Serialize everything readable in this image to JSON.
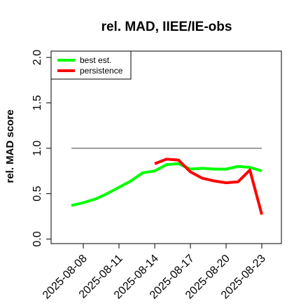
{
  "chart_data": {
    "type": "line",
    "title": "rel. MAD, IIEE/IE-obs",
    "xlabel": "",
    "ylabel": "rel. MAD score",
    "x": [
      "2025-08-07",
      "2025-08-08",
      "2025-08-09",
      "2025-08-10",
      "2025-08-11",
      "2025-08-12",
      "2025-08-13",
      "2025-08-14",
      "2025-08-15",
      "2025-08-16",
      "2025-08-17",
      "2025-08-18",
      "2025-08-19",
      "2025-08-20",
      "2025-08-21",
      "2025-08-22",
      "2025-08-23"
    ],
    "xticks": [
      "2025-08-08",
      "2025-08-11",
      "2025-08-14",
      "2025-08-17",
      "2025-08-20",
      "2025-08-23"
    ],
    "yticks": [
      "0.0",
      "0.5",
      "1.0",
      "1.5",
      "2.0"
    ],
    "ylim": [
      -0.05,
      2.07
    ],
    "grid": false,
    "legend_position": "top-left",
    "reference_line": {
      "value": 1.0,
      "color": "#808080"
    },
    "series": [
      {
        "name": "best est.",
        "color": "#00ff00",
        "values": [
          0.37,
          0.4,
          0.44,
          0.5,
          0.57,
          0.64,
          0.73,
          0.75,
          0.82,
          0.83,
          0.77,
          0.78,
          0.77,
          0.77,
          0.8,
          0.79,
          0.75
        ]
      },
      {
        "name": "persistence",
        "color": "#ff0000",
        "values": [
          null,
          null,
          null,
          null,
          null,
          null,
          null,
          0.83,
          0.88,
          0.87,
          0.74,
          0.67,
          0.64,
          0.62,
          0.63,
          0.76,
          0.27
        ]
      }
    ]
  }
}
